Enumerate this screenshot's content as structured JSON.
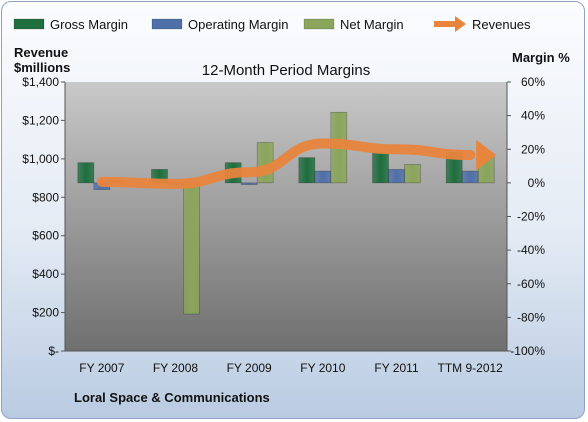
{
  "chart_data": {
    "type": "bar",
    "title": "12-Month Period Margins",
    "categories": [
      "FY 2007",
      "FY 2008",
      "FY 2009",
      "FY 2010",
      "FY 2011",
      "TTM 9-2012"
    ],
    "left_axis": {
      "label_line1": "Revenue",
      "label_line2": "$millions",
      "ticks": [
        "$1,400",
        "$1,200",
        "$1,000",
        "$800",
        "$600",
        "$400",
        "$200",
        "$-"
      ],
      "ylim": [
        0,
        1400
      ]
    },
    "right_axis": {
      "label": "Margin %",
      "ticks": [
        "60%",
        "40%",
        "20%",
        "0%",
        "-20%",
        "-40%",
        "-60%",
        "-80%",
        "-100%"
      ],
      "ylim": [
        -100,
        60
      ]
    },
    "series": [
      {
        "name": "Gross Margin",
        "axis": "right",
        "values": [
          12,
          8,
          12,
          15,
          18,
          18
        ]
      },
      {
        "name": "Operating Margin",
        "axis": "right",
        "values": [
          -4,
          -1,
          -1,
          7,
          8,
          7
        ]
      },
      {
        "name": "Net Margin",
        "axis": "right",
        "values": [
          1,
          -78,
          24,
          42,
          11,
          16
        ]
      },
      {
        "name": "Revenues",
        "axis": "left",
        "type": "line",
        "values": [
          880,
          870,
          930,
          1080,
          1050,
          1020
        ]
      }
    ],
    "legend": "top",
    "colors": {
      "Gross Margin": "#1e6e3e",
      "Operating Margin": "#4e70a8",
      "Net Margin": "#8ba55a",
      "Revenues": "#e8843c"
    },
    "grid": false,
    "footer": "Loral Space & Communications"
  }
}
